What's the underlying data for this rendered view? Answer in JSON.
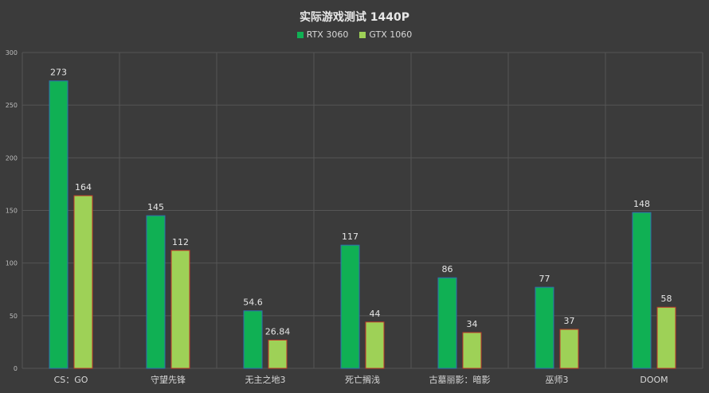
{
  "chart_data": {
    "type": "bar",
    "title": "实际游戏测试 1440P",
    "xlabel": "",
    "ylabel": "",
    "ylim": [
      0,
      300
    ],
    "yticks": [
      0,
      50,
      100,
      150,
      200,
      250,
      300
    ],
    "grid": true,
    "legend_position": "top-center",
    "categories": [
      "CS：GO",
      "守望先锋",
      "无主之地3",
      "死亡搁浅",
      "古墓丽影：暗影",
      "巫师3",
      "DOOM"
    ],
    "series": [
      {
        "name": "RTX 3060",
        "color": "#10b054",
        "border": "#2f6fb0",
        "values": [
          273,
          145,
          54.6,
          117,
          86,
          77,
          148
        ],
        "labels": [
          "273",
          "145",
          "54.6",
          "117",
          "86",
          "77",
          "148"
        ]
      },
      {
        "name": "GTX 1060",
        "color": "#9ed157",
        "border": "#c0392b",
        "values": [
          164,
          112,
          26.84,
          44,
          34,
          37,
          58
        ],
        "labels": [
          "164",
          "112",
          "26.84",
          "44",
          "34",
          "37",
          "58"
        ]
      }
    ]
  }
}
